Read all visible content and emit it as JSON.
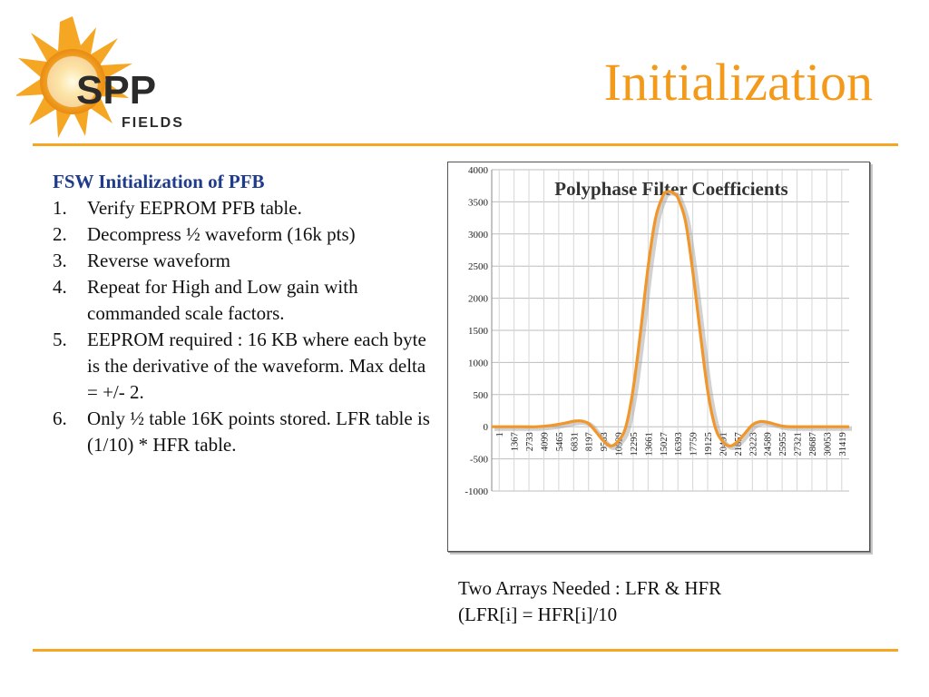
{
  "slide": {
    "title": "Initialization",
    "logo": {
      "name": "SPP FIELDS",
      "text_primary": "SPP",
      "text_secondary": "FIELDS"
    }
  },
  "colors": {
    "title": "#f39a1b",
    "rule": "#f5a623",
    "heading": "#1f3c8c",
    "series": "#f0962a"
  },
  "content": {
    "heading": "FSW Initialization of PFB",
    "items": [
      {
        "num": "1.",
        "text": "Verify EEPROM PFB table."
      },
      {
        "num": "2.",
        "text": "Decompress ½ waveform (16k pts)"
      },
      {
        "num": "3.",
        "text": "Reverse waveform"
      },
      {
        "num": "4.",
        "text": "Repeat for High and Low gain with commanded scale factors."
      },
      {
        "num": "5.",
        "text": "EEPROM required : 16 KB where each byte is the derivative of the waveform. Max delta = +/- 2."
      },
      {
        "num": "6.",
        "text": "Only ½ table 16K points stored. LFR table is (1/10) * HFR table."
      }
    ]
  },
  "caption": {
    "line1": "Two Arrays Needed : LFR & HFR",
    "line2": "(LFR[i] = HFR[i]/10"
  },
  "chart_data": {
    "type": "line",
    "title": "Polyphase Filter Coefficients",
    "xlabel": "",
    "ylabel": "",
    "ylim": [
      -1000,
      4000
    ],
    "yticks": [
      4000,
      3500,
      3000,
      2500,
      2000,
      1500,
      1000,
      500,
      0,
      -500,
      -1000
    ],
    "categories": [
      "1",
      "1367",
      "2733",
      "4099",
      "5465",
      "6831",
      "8197",
      "9563",
      "10929",
      "12295",
      "13661",
      "15027",
      "16393",
      "17759",
      "19125",
      "20491",
      "21857",
      "23223",
      "24589",
      "25955",
      "27321",
      "28687",
      "30053",
      "31419"
    ],
    "xlim": [
      1,
      32768
    ],
    "grid": true,
    "series": [
      {
        "x": [
          1,
          2733,
          4099,
          5465,
          6831,
          7500,
          8197,
          8880,
          9563,
          10246,
          10929,
          11612,
          12295,
          12978,
          13661,
          14344,
          15027,
          15710,
          16000,
          16393,
          16800,
          17076,
          17759,
          18442,
          19125,
          19808,
          20491,
          21174,
          21857,
          22540,
          23223,
          23906,
          24589,
          25272,
          25955,
          26638,
          27321,
          28687,
          30053,
          31419,
          32768
        ],
        "values": [
          0,
          0,
          0,
          20,
          60,
          85,
          90,
          50,
          -80,
          -220,
          -300,
          -220,
          0,
          600,
          1500,
          2500,
          3250,
          3600,
          3650,
          3660,
          3620,
          3560,
          3200,
          2400,
          1450,
          550,
          -10,
          -230,
          -300,
          -230,
          -100,
          30,
          80,
          70,
          40,
          10,
          0,
          0,
          0,
          0,
          0
        ]
      }
    ]
  }
}
